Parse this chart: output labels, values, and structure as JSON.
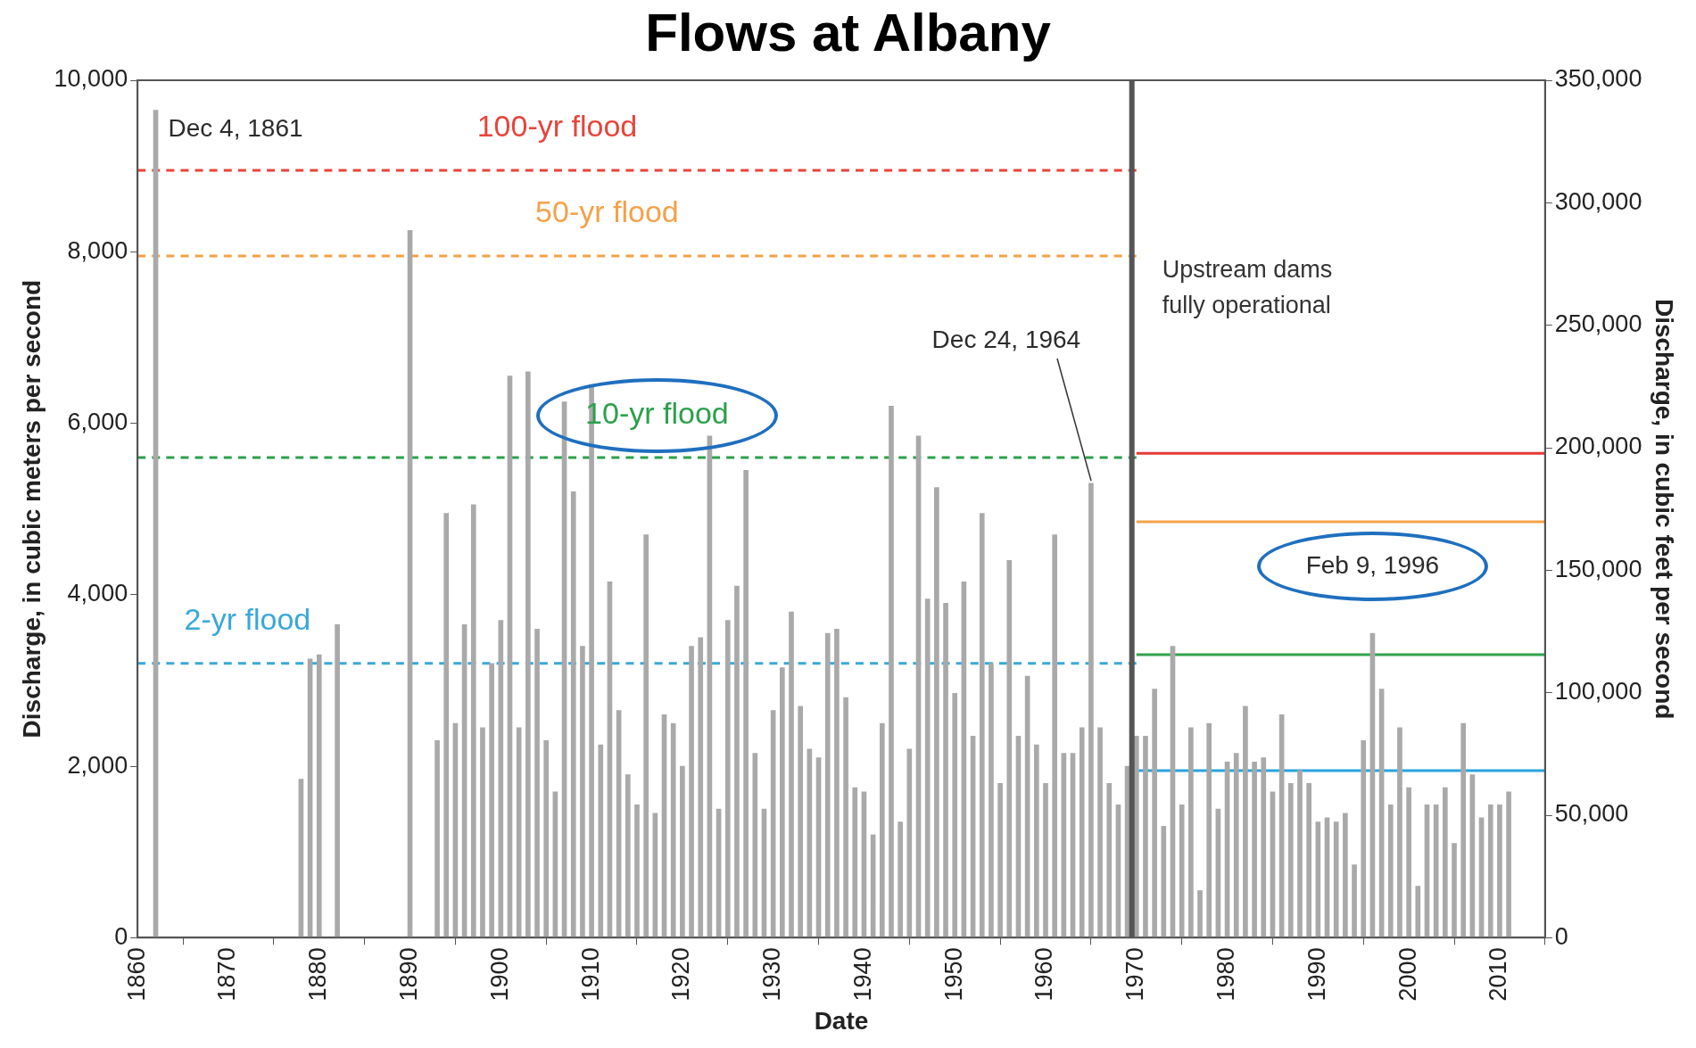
{
  "chart_data": {
    "type": "bar",
    "title": "Flows at Albany",
    "xlabel": "Date",
    "ylabel": "Discharge, in cubic meters per second",
    "y2label": "Discharge, in cubic feet per second",
    "xlim": [
      1860,
      2015
    ],
    "xticks": [
      1860,
      1870,
      1880,
      1890,
      1900,
      1910,
      1920,
      1930,
      1940,
      1950,
      1960,
      1970,
      1980,
      1990,
      2000,
      2010
    ],
    "ylim": [
      0,
      10000
    ],
    "yticks": [
      0,
      {
        "value": 2000,
        "label": "2,000"
      },
      {
        "value": 4000,
        "label": "4,000"
      },
      {
        "value": 6000,
        "label": "6,000"
      },
      {
        "value": 8000,
        "label": "8,000"
      },
      {
        "value": 10000,
        "label": "10,000"
      }
    ],
    "y2lim": [
      0,
      350000
    ],
    "y2ticks": [
      0,
      {
        "value": 50000,
        "label": "50,000"
      },
      {
        "value": 100000,
        "label": "100,000"
      },
      {
        "value": 150000,
        "label": "150,000"
      },
      {
        "value": 200000,
        "label": "200,000"
      },
      {
        "value": 250000,
        "label": "250,000"
      },
      {
        "value": 300000,
        "label": "300,000"
      },
      {
        "value": 350000,
        "label": "350,000"
      }
    ],
    "series": [
      {
        "color": "#a9a9a9",
        "x": [
          1862,
          1878,
          1879,
          1880,
          1882,
          1890,
          1893,
          1894,
          1895,
          1896,
          1897,
          1898,
          1899,
          1900,
          1901,
          1902,
          1903,
          1904,
          1905,
          1906,
          1907,
          1908,
          1909,
          1910,
          1911,
          1912,
          1913,
          1914,
          1915,
          1916,
          1917,
          1918,
          1919,
          1920,
          1921,
          1922,
          1923,
          1924,
          1925,
          1926,
          1927,
          1928,
          1929,
          1930,
          1931,
          1932,
          1933,
          1934,
          1935,
          1936,
          1937,
          1938,
          1939,
          1940,
          1941,
          1942,
          1943,
          1944,
          1945,
          1946,
          1947,
          1948,
          1949,
          1950,
          1951,
          1952,
          1953,
          1954,
          1955,
          1956,
          1957,
          1958,
          1959,
          1960,
          1961,
          1962,
          1963,
          1964,
          1965,
          1966,
          1967,
          1968,
          1969,
          1970,
          1971,
          1972,
          1973,
          1974,
          1975,
          1976,
          1977,
          1978,
          1979,
          1980,
          1981,
          1982,
          1983,
          1984,
          1985,
          1986,
          1987,
          1988,
          1989,
          1990,
          1991,
          1992,
          1993,
          1994,
          1995,
          1996,
          1997,
          1998,
          1999,
          2000,
          2001,
          2002,
          2003,
          2004,
          2005,
          2006,
          2007,
          2008,
          2009,
          2010,
          2011
        ],
        "values": [
          9650,
          1850,
          3250,
          3300,
          3650,
          8250,
          2300,
          4950,
          2500,
          3650,
          5050,
          2450,
          3200,
          3700,
          6550,
          2450,
          6600,
          3600,
          2300,
          1700,
          6250,
          5200,
          3400,
          6450,
          2250,
          4150,
          2650,
          1900,
          1550,
          4700,
          1450,
          2600,
          2500,
          2000,
          3400,
          3500,
          5850,
          1500,
          3700,
          4100,
          5450,
          2150,
          1500,
          2650,
          3150,
          3800,
          2700,
          2200,
          2100,
          3550,
          3600,
          2800,
          1750,
          1700,
          1200,
          2500,
          6200,
          1350,
          2200,
          5850,
          3950,
          5250,
          3900,
          2850,
          4150,
          2350,
          4950,
          3200,
          1800,
          4400,
          2350,
          3050,
          2250,
          1800,
          4700,
          2150,
          2150,
          2450,
          5300,
          2450,
          1800,
          1550,
          2000,
          2350,
          2350,
          2900,
          1300,
          3400,
          1550,
          2450,
          550,
          2500,
          1500,
          2050,
          2150,
          2700,
          2050,
          2100,
          1700,
          2600,
          1800,
          1950,
          1800,
          1350,
          1400,
          1350,
          1450,
          850,
          2300,
          3550,
          2900,
          1550,
          2450,
          1750,
          600,
          1550,
          1550,
          1750,
          1100,
          2500,
          1900,
          1400,
          1550,
          1550,
          1700
        ]
      },
      {
        "type": "line",
        "name": "100-yr flood",
        "color": "#e8443a",
        "line_style": "dashed",
        "x": [
          1860,
          1970
        ],
        "values": [
          8950,
          8950
        ]
      },
      {
        "type": "line",
        "name": "50-yr flood",
        "color": "#f4a14a",
        "line_style": "dashed",
        "x": [
          1860,
          1970
        ],
        "values": [
          7950,
          7950
        ]
      },
      {
        "type": "line",
        "name": "10-yr flood",
        "color": "#2ca04c",
        "line_style": "dashed",
        "x": [
          1860,
          1970
        ],
        "values": [
          5600,
          5600
        ]
      },
      {
        "type": "line",
        "name": "2-yr flood",
        "color": "#3aa8d8",
        "line_style": "dashed",
        "x": [
          1860,
          1970
        ],
        "values": [
          3200,
          3200
        ]
      },
      {
        "type": "line",
        "color": "#e53935",
        "line_style": "solid",
        "x": [
          1970,
          2015
        ],
        "values": [
          5650,
          5650
        ]
      },
      {
        "type": "line",
        "color": "#f4a14a",
        "line_style": "solid",
        "x": [
          1970,
          2015
        ],
        "values": [
          4850,
          4850
        ]
      },
      {
        "type": "line",
        "color": "#31a24c",
        "line_style": "solid",
        "x": [
          1970,
          2015
        ],
        "values": [
          3300,
          3300
        ]
      },
      {
        "type": "line",
        "color": "#29a3dd",
        "line_style": "solid",
        "x": [
          1970,
          2015
        ],
        "values": [
          1950,
          1950
        ]
      }
    ],
    "ref_lines": [
      {
        "axis": "x",
        "value": 1969.5,
        "label": "Upstream dams\nfully operational",
        "color": "#555555"
      }
    ],
    "annotations": [
      {
        "text": "Dec 4, 1861",
        "x": 1862,
        "y": 9650
      },
      {
        "text": "Dec 24, 1964",
        "x": 1965,
        "y": 5300
      },
      {
        "text": "Feb 9, 1996",
        "x": 1996,
        "y": 3550
      }
    ]
  }
}
